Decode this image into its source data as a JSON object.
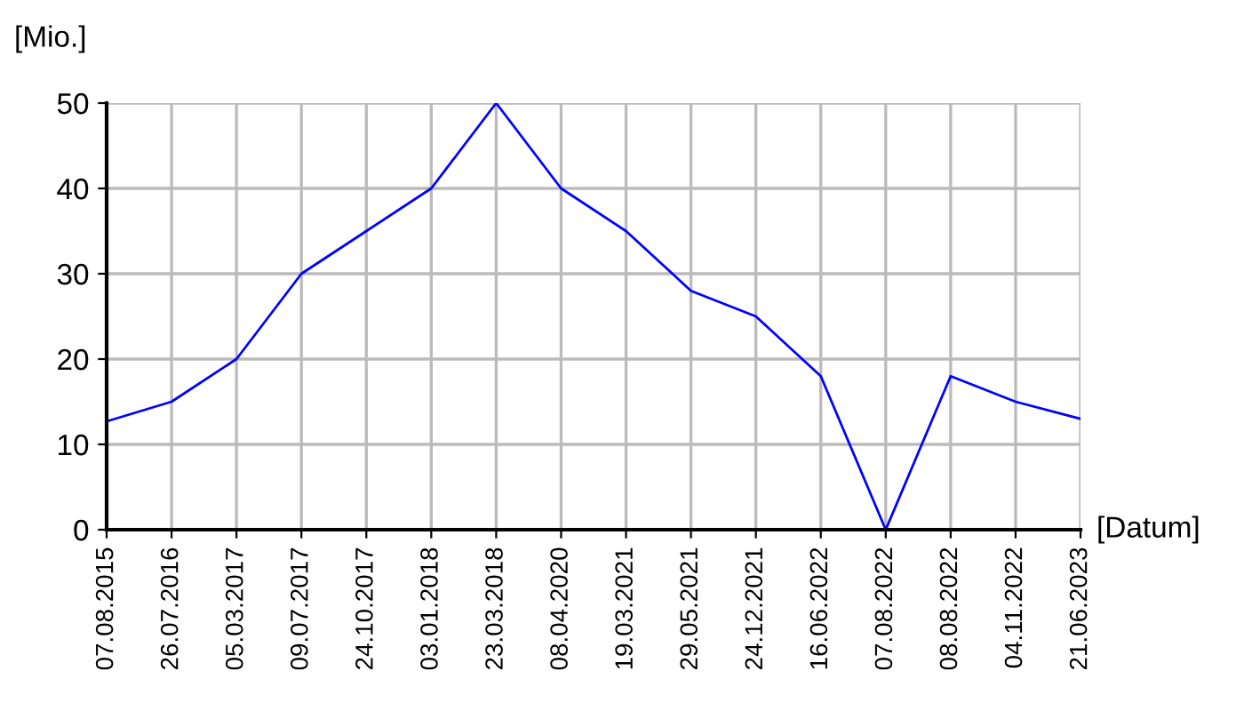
{
  "chart_data": {
    "type": "line",
    "ylabel": "[Mio.]",
    "xlabel": "[Datum]",
    "categories": [
      "07.08.2015",
      "26.07.2016",
      "05.03.2017",
      "09.07.2017",
      "24.10.2017",
      "03.01.2018",
      "23.03.2018",
      "08.04.2020",
      "19.03.2021",
      "29.05.2021",
      "24.12.2021",
      "16.06.2022",
      "07.08.2022",
      "08.08.2022",
      "04.11.2022",
      "21.06.2023"
    ],
    "series": [
      {
        "color": "#0000ff",
        "values": [
          12.7,
          15,
          20,
          30,
          35,
          40,
          50,
          40,
          35,
          28,
          25,
          18,
          0,
          18,
          15,
          13
        ]
      }
    ],
    "ylim": [
      0,
      50
    ],
    "yticks": [
      0,
      10,
      20,
      30,
      40,
      50
    ],
    "grid": true,
    "marker": "none",
    "line_style": "solid"
  }
}
